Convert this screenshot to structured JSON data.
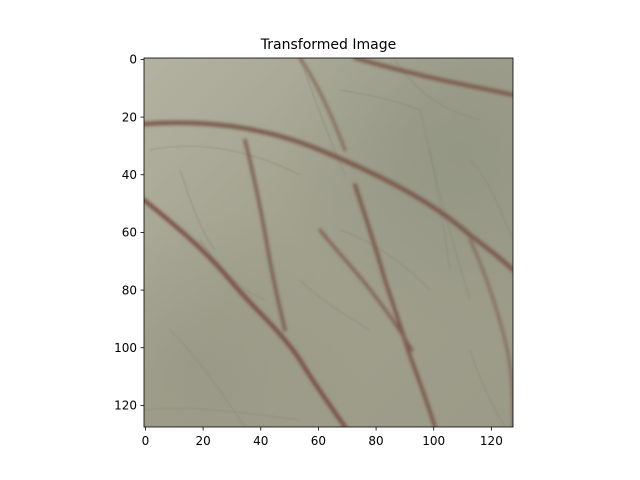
{
  "chart_data": {
    "type": "heatmap",
    "title": "Transformed Image",
    "xlabel": "",
    "ylabel": "",
    "xlim": [
      -0.5,
      127.5
    ],
    "ylim": [
      127.5,
      -0.5
    ],
    "x_ticks": [
      0,
      20,
      40,
      60,
      80,
      100,
      120
    ],
    "y_ticks": [
      0,
      20,
      40,
      60,
      80,
      100,
      120
    ],
    "image": {
      "width": 128,
      "height": 128,
      "background": "#9a9a86",
      "content": "photographic close-up of skin/leaf texture with brownish creases"
    }
  },
  "colors": {
    "tone_light": "#b1b09f",
    "tone_mid": "#9c9d89",
    "tone_dark": "#868776",
    "crease": "#7e5a50",
    "crease_dark": "#6d4a42",
    "axis": "#000000"
  }
}
